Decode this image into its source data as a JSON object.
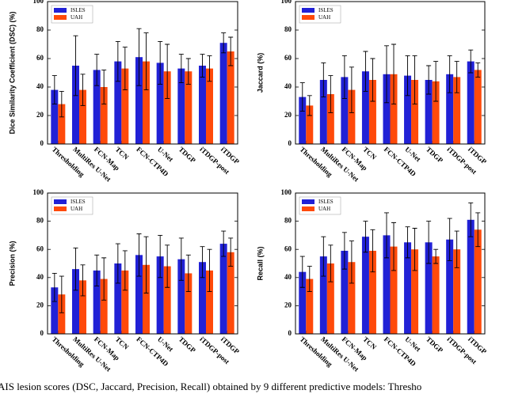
{
  "chart_data": [
    {
      "type": "bar",
      "ylabel": "Dice Similarity Coefficient (DSC) (%)",
      "categories": [
        "Thresholding",
        "MultiRes U-Net",
        "FCN-Map",
        "TCN",
        "FCN-CTP4D",
        "U-Net",
        "TDGP",
        "iTDGP-post",
        "iTDGP"
      ],
      "series": [
        {
          "name": "ISLES",
          "color": "#2121d6",
          "values": [
            38,
            55,
            52,
            58,
            61,
            57,
            53,
            55,
            71
          ],
          "errors": [
            10,
            21,
            11,
            14,
            20,
            15,
            10,
            8,
            7
          ]
        },
        {
          "name": "UAH",
          "color": "#ff4a0a",
          "values": [
            28,
            38,
            40,
            53,
            58,
            51,
            51,
            53,
            65
          ],
          "errors": [
            9,
            11,
            12,
            15,
            20,
            19,
            9,
            9,
            10
          ]
        }
      ],
      "ylim": [
        0,
        100
      ],
      "yticks": [
        0,
        20,
        40,
        60,
        80,
        100
      ],
      "legend": "upper left"
    },
    {
      "type": "bar",
      "ylabel": "Jaccard (%)",
      "categories": [
        "Thresholding",
        "MultiRes U-Net",
        "FCN-Map",
        "TCN",
        "FCN-CTP4D",
        "U-Net",
        "TDGP",
        "iTDGP-post",
        "iTDGP"
      ],
      "series": [
        {
          "name": "ISLES",
          "color": "#2121d6",
          "values": [
            33,
            45,
            47,
            51,
            49,
            48,
            45,
            49,
            58
          ],
          "errors": [
            10,
            12,
            15,
            14,
            20,
            14,
            10,
            13,
            8
          ]
        },
        {
          "name": "UAH",
          "color": "#ff4a0a",
          "values": [
            27,
            35,
            38,
            45,
            49,
            45,
            44,
            47,
            52
          ],
          "errors": [
            7,
            13,
            16,
            15,
            21,
            17,
            14,
            11,
            5
          ]
        }
      ],
      "ylim": [
        0,
        100
      ],
      "yticks": [
        0,
        20,
        40,
        60,
        80,
        100
      ],
      "legend": "upper left"
    },
    {
      "type": "bar",
      "ylabel": "Precision (%)",
      "categories": [
        "Thresholding",
        "MultiRes U-Net",
        "FCN-Map",
        "TCN",
        "FCN-CTP4D",
        "U-Net",
        "TDGP",
        "iTDGP-post",
        "iTDGP"
      ],
      "series": [
        {
          "name": "ISLES",
          "color": "#2121d6",
          "values": [
            33,
            46,
            45,
            50,
            56,
            55,
            53,
            51,
            64
          ],
          "errors": [
            10,
            15,
            11,
            14,
            15,
            15,
            15,
            11,
            9
          ]
        },
        {
          "name": "UAH",
          "color": "#ff4a0a",
          "values": [
            28,
            38,
            39,
            45,
            49,
            48,
            43,
            45,
            58
          ],
          "errors": [
            13,
            11,
            15,
            14,
            20,
            15,
            13,
            15,
            10
          ]
        }
      ],
      "ylim": [
        0,
        100
      ],
      "yticks": [
        0,
        20,
        40,
        60,
        80,
        100
      ],
      "legend": "upper left"
    },
    {
      "type": "bar",
      "ylabel": "Recall (%)",
      "categories": [
        "Thresholding",
        "MultiRes U-Net",
        "FCN-Map",
        "TCN",
        "FCN-CTP4D",
        "U-Net",
        "TDGP",
        "iTDGP-post",
        "iTDGP"
      ],
      "series": [
        {
          "name": "ISLES",
          "color": "#2121d6",
          "values": [
            44,
            55,
            59,
            69,
            70,
            65,
            65,
            67,
            81
          ],
          "errors": [
            11,
            14,
            13,
            11,
            16,
            11,
            15,
            15,
            12
          ]
        },
        {
          "name": "UAH",
          "color": "#ff4a0a",
          "values": [
            39,
            50,
            51,
            59,
            62,
            60,
            55,
            60,
            74
          ],
          "errors": [
            9,
            13,
            15,
            15,
            17,
            15,
            5,
            13,
            12
          ]
        }
      ],
      "ylim": [
        0,
        100
      ],
      "yticks": [
        0,
        20,
        40,
        60,
        80,
        100
      ],
      "legend": "upper left"
    }
  ],
  "caption": "AIS lesion scores (DSC, Jaccard, Precision, Recall) obtained by 9 different predictive models: Thresho"
}
